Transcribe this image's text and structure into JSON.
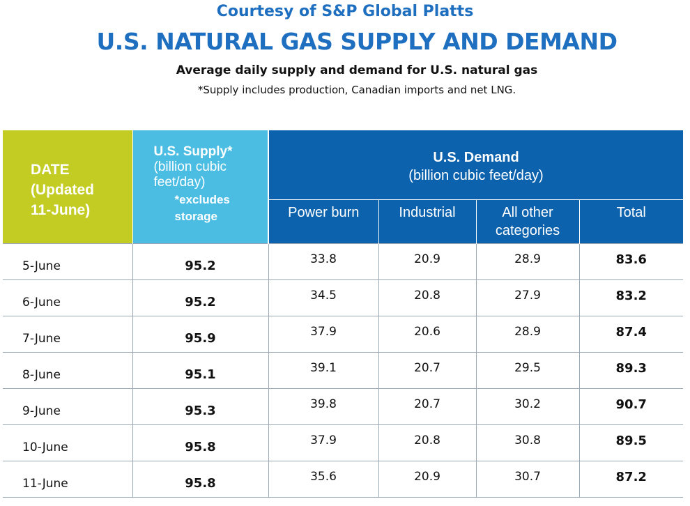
{
  "header": {
    "courtesy": "Courtesy of S&P Global Platts",
    "title": "U.S. NATURAL GAS SUPPLY AND DEMAND",
    "subtitle": "Average daily supply and demand for U.S. natural gas",
    "footnote": "*Supply includes production, Canadian imports and net LNG."
  },
  "colors": {
    "title_blue": "#1e6fc0",
    "date_header_bg": "#c3cc23",
    "supply_header_bg": "#4bbde3",
    "demand_header_bg": "#0d62ad"
  },
  "columns": {
    "date": {
      "line1": "DATE",
      "line2": "(Updated",
      "line3": "11-June)"
    },
    "supply": {
      "title": "U.S. Supply*",
      "unit": "(billion cubic feet/day)",
      "note": "*excludes storage"
    },
    "demand": {
      "title": "U.S. Demand",
      "unit": "(billion cubic feet/day)"
    },
    "demand_sub": [
      "Power burn",
      "Industrial",
      "All other categories",
      "Total"
    ]
  },
  "chart_data": {
    "type": "table",
    "columns": [
      "DATE",
      "U.S. Supply*",
      "Power burn",
      "Industrial",
      "All other categories",
      "Total"
    ],
    "rows": [
      [
        "5-June",
        "95.2",
        "33.8",
        "20.9",
        "28.9",
        "83.6"
      ],
      [
        "6-June",
        "95.2",
        "34.5",
        "20.8",
        "27.9",
        "83.2"
      ],
      [
        "7-June",
        "95.9",
        "37.9",
        "20.6",
        "28.9",
        "87.4"
      ],
      [
        "8-June",
        "95.1",
        "39.1",
        "20.7",
        "29.5",
        "89.3"
      ],
      [
        "9-June",
        "95.3",
        "39.8",
        "20.7",
        "30.2",
        "90.7"
      ],
      [
        "10-June",
        "95.8",
        "37.9",
        "20.8",
        "30.8",
        "89.5"
      ],
      [
        "11-June",
        "95.8",
        "35.6",
        "20.9",
        "30.7",
        "87.2"
      ]
    ]
  }
}
